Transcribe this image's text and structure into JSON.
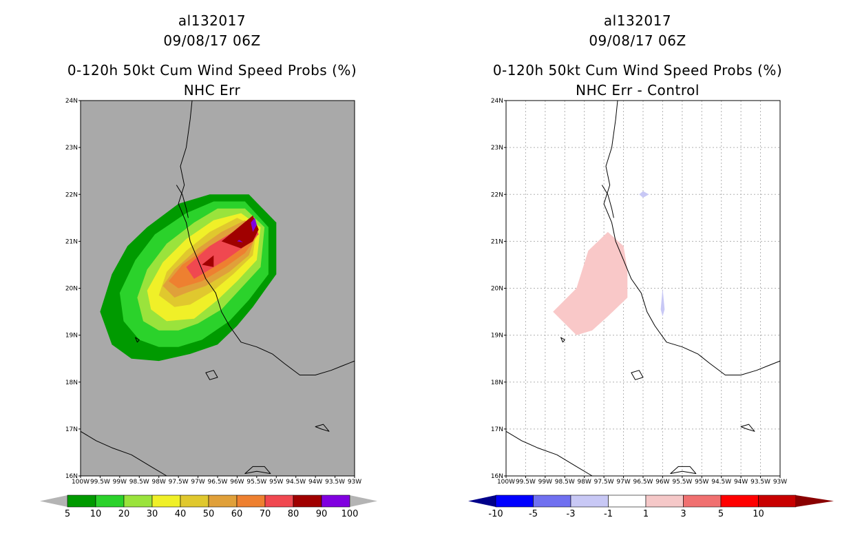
{
  "chart_data": [
    {
      "type": "heatmap",
      "title_lines": [
        "al132017",
        "09/08/17 06Z",
        "0-120h 50kt Cum Wind Speed Probs (%)",
        "NHC Err"
      ],
      "lat_labels": [
        "24N",
        "23N",
        "22N",
        "21N",
        "20N",
        "19N",
        "18N",
        "17N",
        "16N"
      ],
      "lon_labels": [
        "100W",
        "99.5W",
        "99W",
        "98.5W",
        "98W",
        "97.5W",
        "97W",
        "96.5W",
        "96W",
        "95.5W",
        "95W",
        "94.5W",
        "94W",
        "93.5W",
        "93W"
      ],
      "xlim": [
        -100,
        -93
      ],
      "ylim": [
        16,
        24
      ],
      "grid": false,
      "background": "#a9a9a9",
      "colorbar": {
        "labels": [
          "5",
          "10",
          "20",
          "30",
          "40",
          "50",
          "60",
          "70",
          "80",
          "90",
          "100"
        ],
        "colors": [
          "#009a00",
          "#2bd22b",
          "#9ae33c",
          "#f0f028",
          "#e0c82e",
          "#e0a03a",
          "#ee8030",
          "#f04850",
          "#a00000",
          "#8000e0"
        ],
        "end_color": "#b4b4b4"
      },
      "contours": [
        {
          "level": "5-10",
          "color": "#009a00",
          "polygon": [
            [
              -98.0,
              18.45
            ],
            [
              -98.7,
              18.5
            ],
            [
              -99.2,
              18.8
            ],
            [
              -99.5,
              19.5
            ],
            [
              -99.2,
              20.3
            ],
            [
              -98.8,
              20.9
            ],
            [
              -98.3,
              21.3
            ],
            [
              -97.5,
              21.8
            ],
            [
              -96.7,
              22.0
            ],
            [
              -95.7,
              22.0
            ],
            [
              -95.0,
              21.4
            ],
            [
              -95.0,
              20.3
            ],
            [
              -95.6,
              19.6
            ],
            [
              -96.0,
              19.2
            ],
            [
              -96.5,
              18.8
            ],
            [
              -97.2,
              18.6
            ]
          ]
        },
        {
          "level": "10-20",
          "color": "#2bd22b",
          "polygon": [
            [
              -98.0,
              18.75
            ],
            [
              -98.5,
              18.9
            ],
            [
              -98.9,
              19.3
            ],
            [
              -99.0,
              19.9
            ],
            [
              -98.6,
              20.6
            ],
            [
              -98.1,
              21.15
            ],
            [
              -97.3,
              21.6
            ],
            [
              -96.6,
              21.85
            ],
            [
              -95.8,
              21.85
            ],
            [
              -95.2,
              21.3
            ],
            [
              -95.2,
              20.3
            ],
            [
              -95.7,
              19.75
            ],
            [
              -96.2,
              19.3
            ],
            [
              -96.9,
              18.9
            ],
            [
              -97.5,
              18.75
            ]
          ]
        },
        {
          "level": "20-30",
          "color": "#9ae33c",
          "polygon": [
            [
              -98.0,
              19.1
            ],
            [
              -98.4,
              19.3
            ],
            [
              -98.55,
              19.8
            ],
            [
              -98.3,
              20.4
            ],
            [
              -97.8,
              20.95
            ],
            [
              -97.1,
              21.4
            ],
            [
              -96.5,
              21.7
            ],
            [
              -95.8,
              21.7
            ],
            [
              -95.3,
              21.3
            ],
            [
              -95.4,
              20.45
            ],
            [
              -95.9,
              20.0
            ],
            [
              -96.4,
              19.55
            ],
            [
              -97.0,
              19.25
            ],
            [
              -97.5,
              19.1
            ]
          ]
        },
        {
          "level": "30-40",
          "color": "#f0f028",
          "polygon": [
            [
              -97.8,
              19.3
            ],
            [
              -98.2,
              19.55
            ],
            [
              -98.3,
              19.95
            ],
            [
              -97.9,
              20.55
            ],
            [
              -97.3,
              21.05
            ],
            [
              -96.6,
              21.45
            ],
            [
              -95.9,
              21.6
            ],
            [
              -95.4,
              21.3
            ],
            [
              -95.5,
              20.6
            ],
            [
              -96.0,
              20.15
            ],
            [
              -96.5,
              19.75
            ],
            [
              -97.1,
              19.35
            ]
          ]
        },
        {
          "level": "40-50",
          "color": "#e0c82e",
          "polygon": [
            [
              -97.6,
              19.6
            ],
            [
              -98.0,
              19.85
            ],
            [
              -97.8,
              20.35
            ],
            [
              -97.3,
              20.8
            ],
            [
              -96.7,
              21.2
            ],
            [
              -96.0,
              21.5
            ],
            [
              -95.5,
              21.3
            ],
            [
              -95.6,
              20.7
            ],
            [
              -96.1,
              20.3
            ],
            [
              -96.6,
              19.95
            ],
            [
              -97.2,
              19.65
            ]
          ]
        },
        {
          "level": "50-60",
          "color": "#e0a03a",
          "polygon": [
            [
              -97.6,
              19.8
            ],
            [
              -97.9,
              20.05
            ],
            [
              -97.6,
              20.4
            ],
            [
              -97.0,
              20.85
            ],
            [
              -96.4,
              21.2
            ],
            [
              -95.8,
              21.45
            ],
            [
              -95.5,
              21.2
            ],
            [
              -95.7,
              20.7
            ],
            [
              -96.2,
              20.35
            ],
            [
              -96.8,
              20.05
            ],
            [
              -97.3,
              19.9
            ]
          ]
        },
        {
          "level": "60-70",
          "color": "#ee8030",
          "polygon": [
            [
              -97.5,
              20.0
            ],
            [
              -97.75,
              20.15
            ],
            [
              -97.4,
              20.5
            ],
            [
              -96.8,
              20.85
            ],
            [
              -96.2,
              21.15
            ],
            [
              -95.7,
              21.4
            ],
            [
              -95.5,
              21.1
            ],
            [
              -95.8,
              20.75
            ],
            [
              -96.3,
              20.45
            ],
            [
              -96.9,
              20.15
            ]
          ]
        },
        {
          "level": "70-80",
          "color": "#f04850",
          "polygon": [
            [
              -97.1,
              20.2
            ],
            [
              -97.3,
              20.45
            ],
            [
              -96.7,
              20.9
            ],
            [
              -96.0,
              21.25
            ],
            [
              -95.6,
              21.45
            ],
            [
              -95.45,
              21.15
            ],
            [
              -95.8,
              20.9
            ],
            [
              -96.3,
              20.6
            ],
            [
              -96.8,
              20.35
            ]
          ]
        },
        {
          "level": "80-90",
          "color": "#a00000",
          "polygon": [
            [
              -95.9,
              20.85
            ],
            [
              -96.4,
              21.0
            ],
            [
              -95.6,
              21.55
            ],
            [
              -95.45,
              21.25
            ],
            [
              -95.6,
              21.0
            ]
          ]
        },
        {
          "level": "80-90",
          "color": "#a00000",
          "polygon": [
            [
              -96.6,
              20.45
            ],
            [
              -96.9,
              20.5
            ],
            [
              -96.6,
              20.7
            ]
          ]
        },
        {
          "level": "90-100",
          "color": "#8000e0",
          "polygon": [
            [
              -95.55,
              21.5
            ],
            [
              -95.5,
              21.35
            ],
            [
              -95.6,
              21.2
            ],
            [
              -95.65,
              21.4
            ]
          ]
        },
        {
          "level": "90-100",
          "color": "#8000e0",
          "polygon": [
            [
              -96.0,
              21.0
            ],
            [
              -95.85,
              20.98
            ],
            [
              -95.95,
              21.03
            ]
          ]
        }
      ]
    },
    {
      "type": "heatmap",
      "title_lines": [
        "al132017",
        "09/08/17 06Z",
        "0-120h 50kt Cum Wind Speed Probs (%)",
        "NHC Err - Control"
      ],
      "lat_labels": [
        "24N",
        "23N",
        "22N",
        "21N",
        "20N",
        "19N",
        "18N",
        "17N",
        "16N"
      ],
      "lon_labels": [
        "100W",
        "99.5W",
        "99W",
        "98.5W",
        "98W",
        "97.5W",
        "97W",
        "96.5W",
        "96W",
        "95.5W",
        "95W",
        "94.5W",
        "94W",
        "93.5W",
        "93W"
      ],
      "xlim": [
        -100,
        -93
      ],
      "ylim": [
        16,
        24
      ],
      "grid": true,
      "background": "#ffffff",
      "colorbar": {
        "labels": [
          "-10",
          "-5",
          "-3",
          "-1",
          "1",
          "3",
          "5",
          "10"
        ],
        "colors": [
          "#0000c8",
          "#0000ff",
          "#7070f0",
          "#c8c8f5",
          "#ffffff",
          "#f5c8c8",
          "#f07070",
          "#ff0000",
          "#c80000"
        ],
        "left_end_color": "#00008a",
        "right_end_color": "#8a0000"
      },
      "contours": [
        {
          "level": "1-3",
          "color": "#f9c8c8",
          "polygon": [
            [
              -98.2,
              19.0
            ],
            [
              -98.8,
              19.5
            ],
            [
              -98.2,
              20.0
            ],
            [
              -97.9,
              20.8
            ],
            [
              -97.4,
              21.2
            ],
            [
              -97.0,
              20.9
            ],
            [
              -96.9,
              20.4
            ],
            [
              -96.9,
              19.8
            ],
            [
              -97.4,
              19.4
            ],
            [
              -97.8,
              19.1
            ]
          ]
        },
        {
          "level": "-3--1",
          "color": "#c8c8f5",
          "polygon": [
            [
              -96.6,
              22.0
            ],
            [
              -96.5,
              22.07
            ],
            [
              -96.35,
              22.0
            ],
            [
              -96.5,
              21.93
            ]
          ]
        },
        {
          "level": "-3--1",
          "color": "#c8c8f5",
          "polygon": [
            [
              -96.05,
              19.55
            ],
            [
              -96.0,
              20.0
            ],
            [
              -95.95,
              19.55
            ],
            [
              -96.0,
              19.4
            ]
          ]
        }
      ]
    }
  ]
}
